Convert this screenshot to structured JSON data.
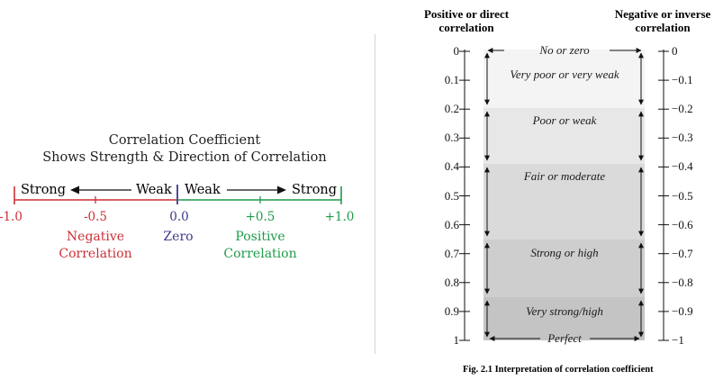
{
  "left": {
    "title_line1": "Correlation Coefficient",
    "title_line2": "Shows Strength & Direction of Correlation",
    "neg_strong": "Strong",
    "neg_weak": "Weak",
    "pos_weak": "Weak",
    "pos_strong": "Strong",
    "ticks": [
      "-1.0",
      "-0.5",
      "0.0",
      "+0.5",
      "+1.0"
    ],
    "negative_label_line1": "Negative",
    "negative_label_line2": "Correlation",
    "zero_label": "Zero",
    "positive_label_line1": "Positive",
    "positive_label_line2": "Correlation",
    "colors": {
      "negative": "#cc2f36",
      "zero": "#3a3a8c",
      "positive": "#1f9a4a",
      "text": "#1f1f1f"
    }
  },
  "right": {
    "header_left_line1": "Positive or direct",
    "header_left_line2": "correlation",
    "header_right_line1": "Negative or inverse",
    "header_right_line2": "correlation",
    "left_values": [
      "0",
      "0.1",
      "0.2",
      "0.3",
      "0.4",
      "0.5",
      "0.6",
      "0.7",
      "0.8",
      "0.9",
      "1"
    ],
    "right_values": [
      "0",
      "−0.1",
      "−0.2",
      "−0.3",
      "−0.4",
      "−0.5",
      "−0.6",
      "−0.7",
      "−0.8",
      "−0.9",
      "−1"
    ],
    "bands": [
      {
        "label": "No or zero",
        "from": 0,
        "to": 0,
        "color": "#ffffff"
      },
      {
        "label": "Very poor or very weak",
        "from": 0,
        "to": 0.2,
        "color": "#f3f3f3"
      },
      {
        "label": "Poor or weak",
        "from": 0.2,
        "to": 0.4,
        "color": "#e6e6e6"
      },
      {
        "label": "Fair or moderate",
        "from": 0.4,
        "to": 0.66,
        "color": "#d9d9d9"
      },
      {
        "label": "Strong or high",
        "from": 0.66,
        "to": 0.86,
        "color": "#cdcdcd"
      },
      {
        "label": "Very strong/high",
        "from": 0.86,
        "to": 1.0,
        "color": "#c3c3c3"
      },
      {
        "label": "Perfect",
        "from": 1.0,
        "to": 1.0,
        "color": "#c3c3c3"
      }
    ],
    "caption": "Fig. 2.1  Interpretation of correlation coefficient"
  }
}
